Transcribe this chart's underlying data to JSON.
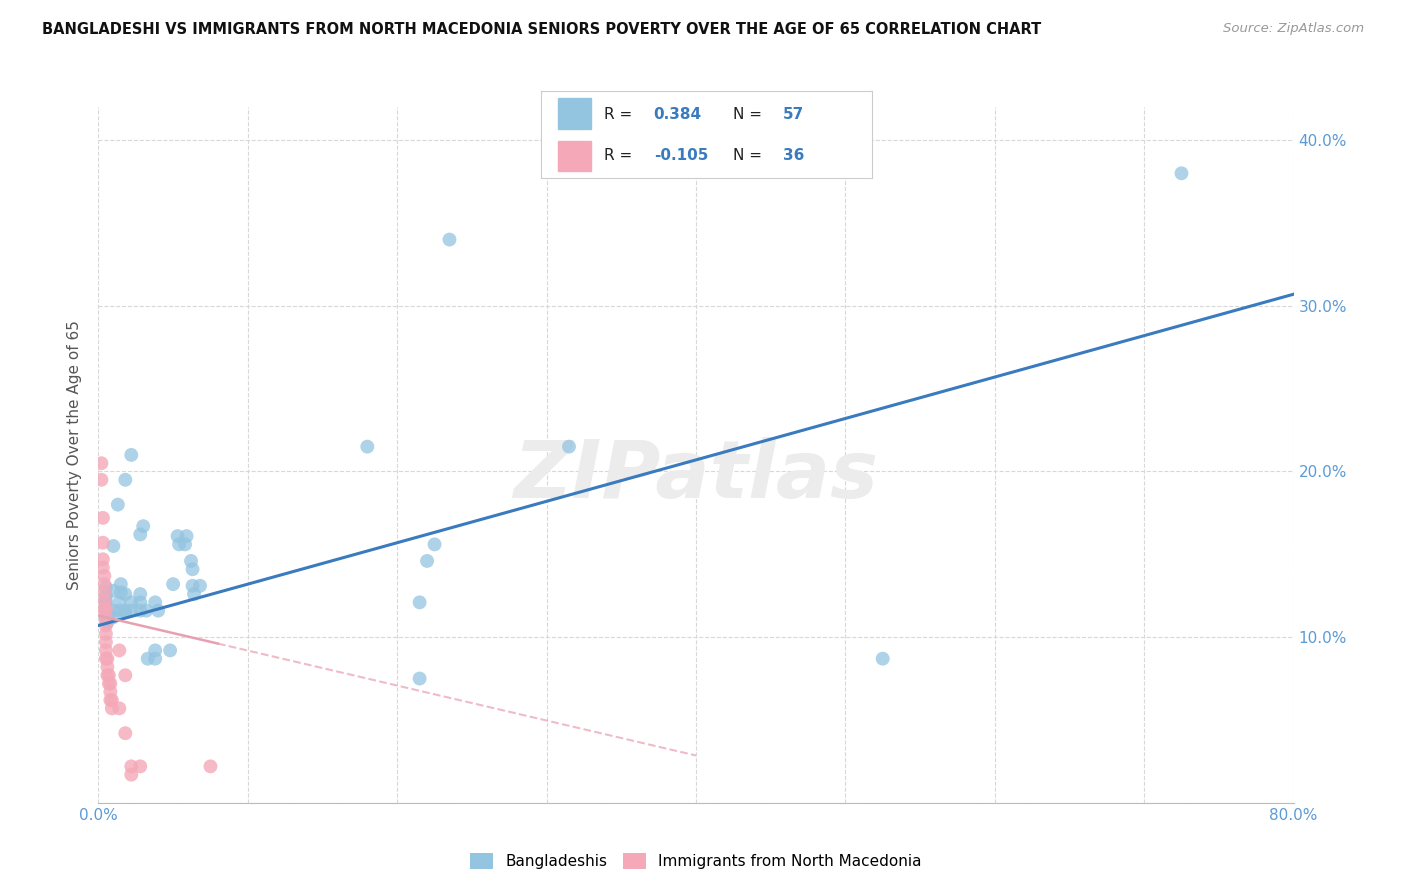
{
  "title": "BANGLADESHI VS IMMIGRANTS FROM NORTH MACEDONIA SENIORS POVERTY OVER THE AGE OF 65 CORRELATION CHART",
  "source": "Source: ZipAtlas.com",
  "ylabel": "Seniors Poverty Over the Age of 65",
  "xlabel": "",
  "xlim": [
    0.0,
    0.8
  ],
  "ylim": [
    0.0,
    0.42
  ],
  "xticks": [
    0.0,
    0.1,
    0.2,
    0.3,
    0.4,
    0.5,
    0.6,
    0.7,
    0.8
  ],
  "xticklabels": [
    "0.0%",
    "",
    "",
    "",
    "",
    "",
    "",
    "",
    "80.0%"
  ],
  "yticks": [
    0.0,
    0.1,
    0.2,
    0.3,
    0.4
  ],
  "yticklabels": [
    "",
    "10.0%",
    "20.0%",
    "30.0%",
    "40.0%"
  ],
  "background_color": "#ffffff",
  "grid_color": "#d8d8d8",
  "watermark": "ZIPatlas",
  "blue_color": "#93c4e0",
  "pink_color": "#f4a8b8",
  "blue_line_color": "#3a7bbf",
  "pink_line_color": "#e8a0b0",
  "blue_scatter": [
    [
      0.018,
      0.115
    ],
    [
      0.01,
      0.128
    ],
    [
      0.018,
      0.195
    ],
    [
      0.013,
      0.18
    ],
    [
      0.022,
      0.21
    ],
    [
      0.01,
      0.155
    ],
    [
      0.005,
      0.125
    ],
    [
      0.005,
      0.12
    ],
    [
      0.005,
      0.115
    ],
    [
      0.005,
      0.112
    ],
    [
      0.005,
      0.13
    ],
    [
      0.005,
      0.122
    ],
    [
      0.005,
      0.118
    ],
    [
      0.005,
      0.11
    ],
    [
      0.006,
      0.113
    ],
    [
      0.006,
      0.109
    ],
    [
      0.01,
      0.116
    ],
    [
      0.01,
      0.112
    ],
    [
      0.014,
      0.116
    ],
    [
      0.014,
      0.121
    ],
    [
      0.015,
      0.132
    ],
    [
      0.015,
      0.127
    ],
    [
      0.018,
      0.126
    ],
    [
      0.018,
      0.116
    ],
    [
      0.022,
      0.121
    ],
    [
      0.022,
      0.116
    ],
    [
      0.028,
      0.121
    ],
    [
      0.028,
      0.116
    ],
    [
      0.028,
      0.126
    ],
    [
      0.028,
      0.162
    ],
    [
      0.03,
      0.167
    ],
    [
      0.032,
      0.116
    ],
    [
      0.033,
      0.087
    ],
    [
      0.038,
      0.087
    ],
    [
      0.038,
      0.092
    ],
    [
      0.038,
      0.121
    ],
    [
      0.04,
      0.116
    ],
    [
      0.048,
      0.092
    ],
    [
      0.05,
      0.132
    ],
    [
      0.053,
      0.161
    ],
    [
      0.054,
      0.156
    ],
    [
      0.058,
      0.156
    ],
    [
      0.059,
      0.161
    ],
    [
      0.062,
      0.146
    ],
    [
      0.063,
      0.141
    ],
    [
      0.063,
      0.131
    ],
    [
      0.064,
      0.126
    ],
    [
      0.068,
      0.131
    ],
    [
      0.18,
      0.215
    ],
    [
      0.215,
      0.121
    ],
    [
      0.22,
      0.146
    ],
    [
      0.225,
      0.156
    ],
    [
      0.235,
      0.34
    ],
    [
      0.315,
      0.215
    ],
    [
      0.525,
      0.087
    ],
    [
      0.725,
      0.38
    ],
    [
      0.215,
      0.075
    ]
  ],
  "pink_scatter": [
    [
      0.002,
      0.205
    ],
    [
      0.002,
      0.195
    ],
    [
      0.003,
      0.172
    ],
    [
      0.003,
      0.157
    ],
    [
      0.003,
      0.147
    ],
    [
      0.003,
      0.142
    ],
    [
      0.004,
      0.137
    ],
    [
      0.004,
      0.132
    ],
    [
      0.004,
      0.127
    ],
    [
      0.004,
      0.122
    ],
    [
      0.004,
      0.117
    ],
    [
      0.005,
      0.117
    ],
    [
      0.005,
      0.112
    ],
    [
      0.005,
      0.107
    ],
    [
      0.005,
      0.102
    ],
    [
      0.005,
      0.097
    ],
    [
      0.005,
      0.092
    ],
    [
      0.005,
      0.087
    ],
    [
      0.006,
      0.087
    ],
    [
      0.006,
      0.082
    ],
    [
      0.006,
      0.077
    ],
    [
      0.007,
      0.077
    ],
    [
      0.007,
      0.072
    ],
    [
      0.008,
      0.072
    ],
    [
      0.008,
      0.067
    ],
    [
      0.008,
      0.062
    ],
    [
      0.009,
      0.062
    ],
    [
      0.009,
      0.057
    ],
    [
      0.014,
      0.057
    ],
    [
      0.014,
      0.092
    ],
    [
      0.018,
      0.077
    ],
    [
      0.018,
      0.042
    ],
    [
      0.022,
      0.022
    ],
    [
      0.022,
      0.017
    ],
    [
      0.028,
      0.022
    ],
    [
      0.075,
      0.022
    ]
  ],
  "blue_trendline": [
    [
      0.0,
      0.107
    ],
    [
      0.8,
      0.307
    ]
  ],
  "pink_trendline": [
    [
      0.0,
      0.113
    ],
    [
      0.18,
      0.075
    ]
  ]
}
